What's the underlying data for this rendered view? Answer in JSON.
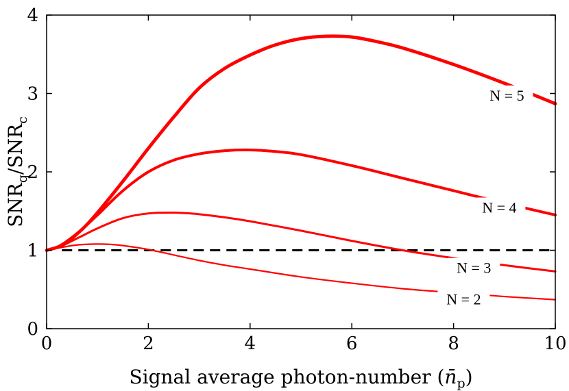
{
  "chart_data": {
    "type": "line",
    "title": "",
    "xlabel": "Signal average photon-number (n̄p)",
    "xlabel_main": "Signal average photon-number (",
    "xlabel_sym": "n̄",
    "xlabel_sub": "p",
    "xlabel_close": ")",
    "ylabel_main": "SNR",
    "ylabel_sub1": "q",
    "ylabel_slash": "/SNR",
    "ylabel_sub2": "c",
    "xlim": [
      0,
      10
    ],
    "ylim": [
      0,
      4
    ],
    "xticks": [
      "0",
      "2",
      "4",
      "6",
      "8",
      "10"
    ],
    "yticks": [
      "0",
      "1",
      "2",
      "3",
      "4"
    ],
    "grid": false,
    "colors": {
      "curve": "#ff0000",
      "reference": "#000000"
    },
    "reference_line": {
      "y": 1,
      "style": "dashed"
    },
    "series": [
      {
        "name": "N = 2",
        "label": "N = 2",
        "x": [
          0,
          0.25,
          0.5,
          0.75,
          1,
          1.25,
          1.5,
          2,
          2.5,
          3,
          3.5,
          4,
          5,
          6,
          7,
          8,
          9,
          10
        ],
        "y": [
          1.0,
          1.03,
          1.06,
          1.075,
          1.08,
          1.075,
          1.06,
          1.01,
          0.94,
          0.87,
          0.81,
          0.76,
          0.66,
          0.58,
          0.51,
          0.46,
          0.41,
          0.37
        ]
      },
      {
        "name": "N = 3",
        "label": "N = 3",
        "x": [
          0,
          0.25,
          0.5,
          0.75,
          1,
          1.5,
          2,
          2.5,
          3,
          3.5,
          4,
          5,
          6,
          7,
          8,
          9,
          10
        ],
        "y": [
          1.0,
          1.04,
          1.12,
          1.2,
          1.28,
          1.41,
          1.47,
          1.48,
          1.46,
          1.42,
          1.37,
          1.25,
          1.12,
          1.0,
          0.9,
          0.81,
          0.73
        ]
      },
      {
        "name": "N = 4",
        "label": "N = 4",
        "x": [
          0,
          0.25,
          0.5,
          0.75,
          1,
          1.5,
          2,
          2.5,
          3,
          3.5,
          4,
          4.5,
          5,
          6,
          7,
          8,
          9,
          10
        ],
        "y": [
          1.0,
          1.05,
          1.15,
          1.3,
          1.45,
          1.76,
          2.0,
          2.15,
          2.23,
          2.27,
          2.28,
          2.26,
          2.22,
          2.08,
          1.92,
          1.76,
          1.6,
          1.45
        ]
      },
      {
        "name": "N = 5",
        "label": "N = 5",
        "x": [
          0,
          0.25,
          0.5,
          0.75,
          1,
          1.5,
          2,
          2.5,
          3,
          3.5,
          4,
          4.5,
          5,
          5.5,
          6,
          6.5,
          7,
          8,
          9,
          10
        ],
        "y": [
          1.0,
          1.05,
          1.16,
          1.3,
          1.48,
          1.88,
          2.3,
          2.7,
          3.07,
          3.32,
          3.49,
          3.62,
          3.7,
          3.73,
          3.72,
          3.66,
          3.58,
          3.37,
          3.13,
          2.87
        ]
      }
    ]
  }
}
